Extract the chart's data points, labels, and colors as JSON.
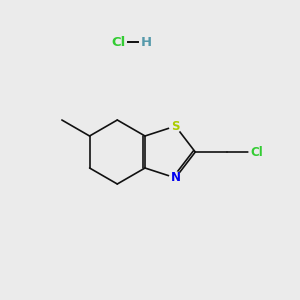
{
  "background_color": "#ebebeb",
  "s_label": "S",
  "n_label": "N",
  "cl_label": "Cl",
  "h_label": "H",
  "hcl_label": "Cl",
  "s_color": "#aacc00",
  "n_color": "#0000ee",
  "cl_color": "#33cc33",
  "hcl_cl_color": "#33cc33",
  "hcl_h_color": "#5599aa",
  "bond_color": "#111111",
  "bond_lw": 1.2,
  "figsize": [
    3.0,
    3.0
  ],
  "dpi": 100
}
